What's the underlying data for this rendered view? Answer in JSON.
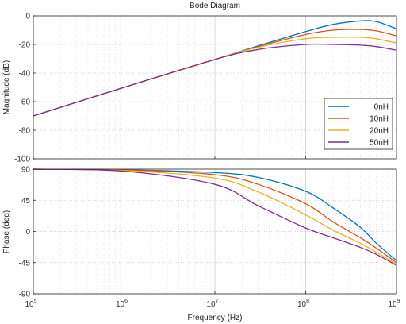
{
  "chart_data": {
    "type": "line",
    "title": "Bode Diagram",
    "xlabel": "Frequency  (Hz)",
    "x_scale": "log",
    "xlim": [
      100000,
      1000000000
    ],
    "x_ticks": [
      {
        "value": 100000,
        "base": "10",
        "exp": "5"
      },
      {
        "value": 1000000,
        "base": "10",
        "exp": "6"
      },
      {
        "value": 10000000,
        "base": "10",
        "exp": "7"
      },
      {
        "value": 100000000,
        "base": "10",
        "exp": "8"
      },
      {
        "value": 1000000000,
        "base": "10",
        "exp": "9"
      }
    ],
    "grid": true,
    "legend_position": "lower-right of magnitude panel",
    "colors": {
      "0nH": "#0072bd",
      "10nH": "#d95319",
      "20nH": "#edb120",
      "50nH": "#7e2f8e"
    },
    "x": [
      100000,
      1000000,
      10000000,
      30000000,
      100000000,
      200000000,
      400000000,
      600000000,
      1000000000
    ],
    "panels": [
      {
        "name": "magnitude",
        "ylabel": "Magnitude (dB)",
        "ylim": [
          -100,
          0
        ],
        "y_ticks": [
          0,
          -20,
          -40,
          -60,
          -80,
          -100
        ],
        "y_tick_labels": [
          "0",
          "-20",
          "-40",
          "-60",
          "-80",
          "-100"
        ],
        "series": [
          {
            "name": "0nH",
            "values": [
              -70,
              -50,
              -30.5,
              -21,
              -11,
              -6,
              -3.5,
              -4,
              -9
            ]
          },
          {
            "name": "10nH",
            "values": [
              -70,
              -50,
              -30.5,
              -21.5,
              -13,
              -10,
              -9.5,
              -10.5,
              -14
            ]
          },
          {
            "name": "20nH",
            "values": [
              -70,
              -50,
              -30.5,
              -22,
              -16,
              -15,
              -15,
              -16,
              -19
            ]
          },
          {
            "name": "50nH",
            "values": [
              -70,
              -50,
              -30.5,
              -23.5,
              -20,
              -20,
              -20.5,
              -21.5,
              -24
            ]
          }
        ]
      },
      {
        "name": "phase",
        "ylabel": "Phase (deg)",
        "ylim": [
          -90,
          90
        ],
        "y_ticks": [
          90,
          45,
          0,
          -45,
          -90
        ],
        "y_tick_labels": [
          "90",
          "45",
          "0",
          "-45",
          "-90"
        ],
        "series": [
          {
            "name": "0nH",
            "values": [
              89.9,
              89,
              85,
              78,
              58,
              34,
              6,
              -17,
              -42
            ]
          },
          {
            "name": "10nH",
            "values": [
              89.9,
              89,
              82,
              68,
              40,
              14,
              -9,
              -24,
              -45
            ]
          },
          {
            "name": "20nH",
            "values": [
              89.9,
              88,
              77,
              57,
              24,
              2,
              -17,
              -30,
              -47
            ]
          },
          {
            "name": "50nH",
            "values": [
              89.9,
              87,
              68,
              37,
              5,
              -9,
              -23,
              -33,
              -49
            ]
          }
        ]
      }
    ],
    "legend": [
      "0nH",
      "10nH",
      "20nH",
      "50nH"
    ]
  }
}
